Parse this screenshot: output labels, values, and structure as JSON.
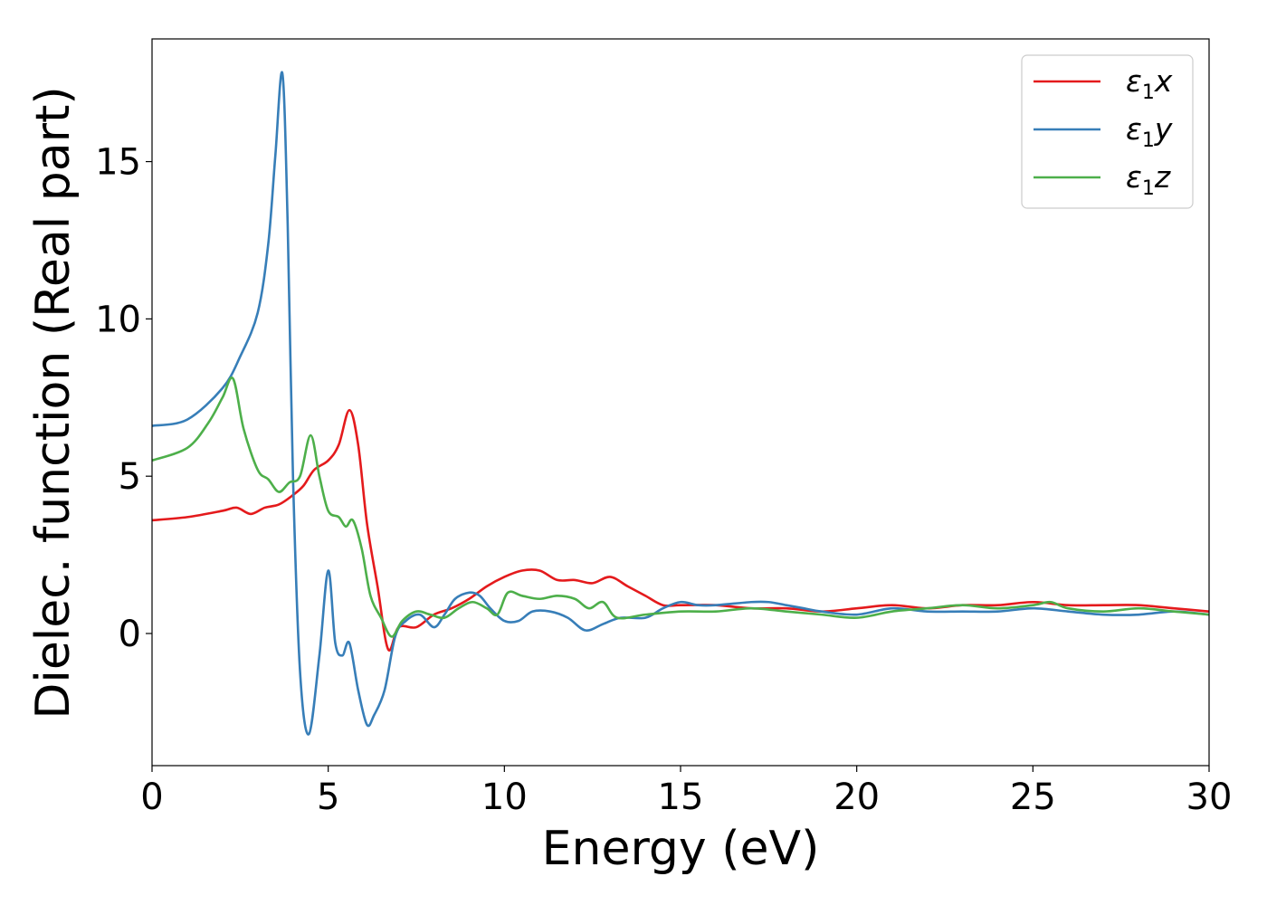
{
  "chart_data": {
    "type": "line",
    "xlabel": "Energy (eV)",
    "ylabel": "Dielec. function (Real part)",
    "xlim": [
      0,
      30
    ],
    "ylim": [
      -4.2,
      18.9
    ],
    "xticks": [
      0,
      5,
      10,
      15,
      20,
      25,
      30
    ],
    "yticks": [
      0,
      5,
      10,
      15
    ],
    "xtick_labels": [
      "0",
      "5",
      "10",
      "15",
      "20",
      "25",
      "30"
    ],
    "ytick_labels": [
      "0",
      "5",
      "10",
      "15"
    ],
    "grid": false,
    "legend_position": "top-right",
    "series": [
      {
        "name": "ε1x",
        "legend_base": "ε",
        "legend_sub": "1",
        "legend_suffix": "x",
        "color": "#e41a1c",
        "x": [
          0,
          1,
          2,
          2.4,
          2.8,
          3.2,
          3.6,
          4,
          4.3,
          4.6,
          5,
          5.3,
          5.6,
          5.85,
          6.1,
          6.4,
          6.7,
          7,
          7.5,
          8,
          8.5,
          9,
          9.5,
          10,
          10.5,
          11,
          11.5,
          12,
          12.5,
          13,
          13.5,
          14,
          14.5,
          15,
          16,
          17,
          18,
          19,
          20,
          21,
          22,
          23,
          24,
          25,
          26,
          27,
          28,
          29,
          30
        ],
        "y": [
          3.6,
          3.7,
          3.9,
          4.0,
          3.8,
          4.0,
          4.1,
          4.4,
          4.7,
          5.2,
          5.5,
          6.0,
          7.1,
          6.0,
          3.5,
          1.5,
          -0.5,
          0.2,
          0.2,
          0.6,
          0.8,
          1.1,
          1.5,
          1.8,
          2.0,
          2.0,
          1.7,
          1.7,
          1.6,
          1.8,
          1.5,
          1.2,
          0.9,
          0.9,
          0.9,
          0.8,
          0.8,
          0.7,
          0.8,
          0.9,
          0.8,
          0.9,
          0.9,
          1.0,
          0.9,
          0.9,
          0.9,
          0.8,
          0.7
        ]
      },
      {
        "name": "ε1y",
        "legend_base": "ε",
        "legend_sub": "1",
        "legend_suffix": "y",
        "color": "#377eb8",
        "x": [
          0,
          1,
          2,
          2.5,
          3,
          3.3,
          3.5,
          3.7,
          3.85,
          4,
          4.2,
          4.45,
          4.75,
          5,
          5.2,
          5.4,
          5.6,
          5.85,
          6.1,
          6.3,
          6.6,
          6.9,
          7.2,
          7.6,
          8,
          8.3,
          8.6,
          9,
          9.3,
          9.6,
          10,
          10.4,
          10.8,
          11.3,
          11.8,
          12.3,
          12.8,
          13.3,
          14,
          14.5,
          15,
          15.5,
          16,
          17,
          17.5,
          18,
          18.5,
          19,
          20,
          21,
          22,
          23,
          24,
          25,
          26,
          27,
          28,
          29,
          30
        ],
        "y": [
          6.6,
          6.8,
          7.8,
          8.8,
          10.2,
          12.4,
          15.2,
          17.8,
          13,
          5,
          -1.2,
          -3.2,
          -0.7,
          2.0,
          -0.3,
          -0.7,
          -0.3,
          -1.8,
          -2.9,
          -2.6,
          -1.8,
          -0.1,
          0.4,
          0.6,
          0.2,
          0.6,
          1.1,
          1.3,
          1.2,
          0.8,
          0.4,
          0.4,
          0.7,
          0.7,
          0.5,
          0.1,
          0.3,
          0.5,
          0.5,
          0.8,
          1.0,
          0.9,
          0.9,
          1.0,
          1.0,
          0.9,
          0.8,
          0.7,
          0.6,
          0.8,
          0.7,
          0.7,
          0.7,
          0.8,
          0.7,
          0.6,
          0.6,
          0.7,
          0.6
        ]
      },
      {
        "name": "ε1z",
        "legend_base": "ε",
        "legend_sub": "1",
        "legend_suffix": "z",
        "color": "#4daf4a",
        "x": [
          0,
          1,
          1.6,
          2,
          2.3,
          2.6,
          3,
          3.3,
          3.6,
          3.9,
          4.2,
          4.5,
          4.75,
          5,
          5.3,
          5.5,
          5.7,
          5.95,
          6.2,
          6.5,
          6.8,
          7.1,
          7.5,
          7.9,
          8.3,
          8.7,
          9.1,
          9.5,
          9.8,
          10.1,
          10.5,
          11,
          11.5,
          12,
          12.4,
          12.8,
          13.2,
          14,
          15,
          16,
          17,
          18,
          19,
          20,
          21,
          22,
          23,
          24,
          25,
          25.5,
          26,
          27,
          28,
          29,
          30
        ],
        "y": [
          5.5,
          5.9,
          6.7,
          7.5,
          8.1,
          6.5,
          5.2,
          4.9,
          4.5,
          4.8,
          5.0,
          6.3,
          5.0,
          3.9,
          3.7,
          3.4,
          3.6,
          2.7,
          1.2,
          0.5,
          -0.1,
          0.4,
          0.7,
          0.6,
          0.5,
          0.8,
          1.0,
          0.8,
          0.6,
          1.3,
          1.2,
          1.1,
          1.2,
          1.1,
          0.8,
          1.0,
          0.5,
          0.6,
          0.7,
          0.7,
          0.8,
          0.7,
          0.6,
          0.5,
          0.7,
          0.8,
          0.9,
          0.8,
          0.9,
          1.0,
          0.8,
          0.7,
          0.8,
          0.7,
          0.6
        ]
      }
    ]
  }
}
